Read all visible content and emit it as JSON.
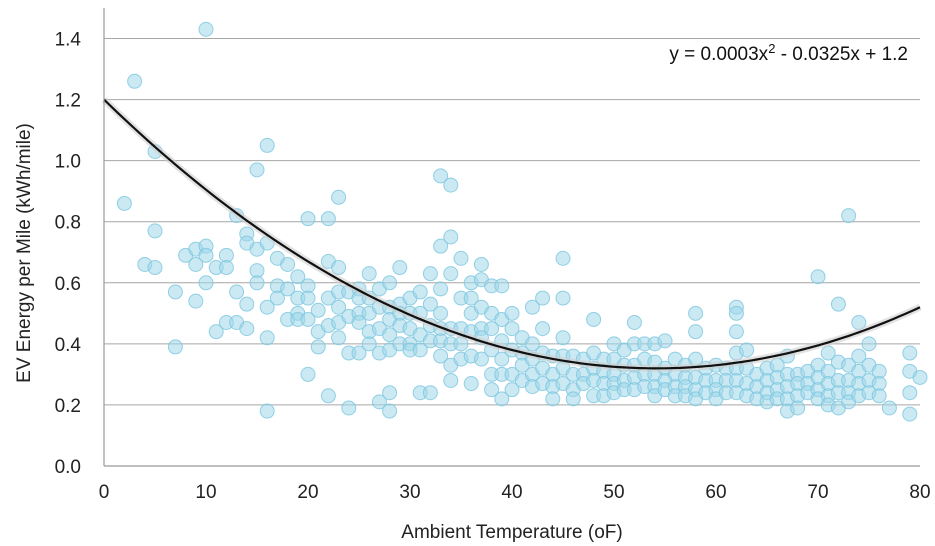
{
  "chart_data": {
    "type": "scatter",
    "title": "",
    "xlabel": "Ambient Temperature (oF)",
    "ylabel": "EV Energy per Mile (kWh/mile)",
    "xlim": [
      0,
      80
    ],
    "ylim": [
      0,
      1.5
    ],
    "x_ticks": [
      "0",
      "10",
      "20",
      "30",
      "40",
      "50",
      "60",
      "70",
      "80"
    ],
    "y_ticks": [
      "0.0",
      "0.2",
      "0.4",
      "0.6",
      "0.8",
      "1.0",
      "1.2",
      "1.4"
    ],
    "grid": "horizontal",
    "colors": {
      "points": "#9fd7e9",
      "points_stroke": "#7cc6df",
      "trend": "#111111"
    },
    "trendline": {
      "type": "polynomial",
      "coefficients": [
        0.0003,
        -0.0325,
        1.2
      ],
      "equation_prefix": "y = 0.0003x",
      "equation_sup": "2",
      "equation_suffix": " - 0.0325x + 1.2"
    },
    "points": [
      [
        2,
        0.86
      ],
      [
        3,
        1.26
      ],
      [
        4,
        0.66
      ],
      [
        5,
        1.03
      ],
      [
        5,
        0.77
      ],
      [
        5,
        0.65
      ],
      [
        7,
        0.57
      ],
      [
        7,
        0.39
      ],
      [
        8,
        0.69
      ],
      [
        9,
        0.71
      ],
      [
        9,
        0.66
      ],
      [
        9,
        0.54
      ],
      [
        10,
        1.43
      ],
      [
        10,
        0.72
      ],
      [
        10,
        0.69
      ],
      [
        10,
        0.6
      ],
      [
        11,
        0.65
      ],
      [
        11,
        0.44
      ],
      [
        12,
        0.69
      ],
      [
        12,
        0.65
      ],
      [
        12,
        0.47
      ],
      [
        13,
        0.82
      ],
      [
        13,
        0.57
      ],
      [
        13,
        0.47
      ],
      [
        14,
        0.76
      ],
      [
        14,
        0.73
      ],
      [
        14,
        0.53
      ],
      [
        14,
        0.45
      ],
      [
        15,
        0.97
      ],
      [
        15,
        0.71
      ],
      [
        15,
        0.64
      ],
      [
        15,
        0.6
      ],
      [
        16,
        1.05
      ],
      [
        16,
        0.73
      ],
      [
        16,
        0.52
      ],
      [
        16,
        0.42
      ],
      [
        16,
        0.18
      ],
      [
        17,
        0.68
      ],
      [
        17,
        0.59
      ],
      [
        17,
        0.55
      ],
      [
        18,
        0.66
      ],
      [
        18,
        0.58
      ],
      [
        18,
        0.48
      ],
      [
        19,
        0.62
      ],
      [
        19,
        0.55
      ],
      [
        19,
        0.5
      ],
      [
        19,
        0.48
      ],
      [
        20,
        0.81
      ],
      [
        20,
        0.59
      ],
      [
        20,
        0.55
      ],
      [
        20,
        0.48
      ],
      [
        20,
        0.3
      ],
      [
        21,
        0.51
      ],
      [
        21,
        0.44
      ],
      [
        21,
        0.39
      ],
      [
        22,
        0.81
      ],
      [
        22,
        0.67
      ],
      [
        22,
        0.55
      ],
      [
        22,
        0.46
      ],
      [
        22,
        0.23
      ],
      [
        23,
        0.88
      ],
      [
        23,
        0.65
      ],
      [
        23,
        0.57
      ],
      [
        23,
        0.52
      ],
      [
        23,
        0.47
      ],
      [
        23,
        0.42
      ],
      [
        24,
        0.57
      ],
      [
        24,
        0.49
      ],
      [
        24,
        0.37
      ],
      [
        24,
        0.19
      ],
      [
        25,
        0.58
      ],
      [
        25,
        0.55
      ],
      [
        25,
        0.5
      ],
      [
        25,
        0.47
      ],
      [
        25,
        0.37
      ],
      [
        26,
        0.63
      ],
      [
        26,
        0.55
      ],
      [
        26,
        0.5
      ],
      [
        26,
        0.44
      ],
      [
        26,
        0.4
      ],
      [
        27,
        0.58
      ],
      [
        27,
        0.52
      ],
      [
        27,
        0.45
      ],
      [
        27,
        0.37
      ],
      [
        27,
        0.21
      ],
      [
        28,
        0.6
      ],
      [
        28,
        0.52
      ],
      [
        28,
        0.48
      ],
      [
        28,
        0.43
      ],
      [
        28,
        0.38
      ],
      [
        28,
        0.24
      ],
      [
        28,
        0.18
      ],
      [
        29,
        0.65
      ],
      [
        29,
        0.53
      ],
      [
        29,
        0.5
      ],
      [
        29,
        0.46
      ],
      [
        29,
        0.4
      ],
      [
        30,
        0.55
      ],
      [
        30,
        0.5
      ],
      [
        30,
        0.45
      ],
      [
        30,
        0.4
      ],
      [
        30,
        0.38
      ],
      [
        31,
        0.57
      ],
      [
        31,
        0.5
      ],
      [
        31,
        0.43
      ],
      [
        31,
        0.38
      ],
      [
        31,
        0.24
      ],
      [
        32,
        0.63
      ],
      [
        32,
        0.53
      ],
      [
        32,
        0.46
      ],
      [
        32,
        0.41
      ],
      [
        32,
        0.24
      ],
      [
        33,
        0.95
      ],
      [
        33,
        0.72
      ],
      [
        33,
        0.58
      ],
      [
        33,
        0.5
      ],
      [
        33,
        0.45
      ],
      [
        33,
        0.41
      ],
      [
        33,
        0.36
      ],
      [
        34,
        0.92
      ],
      [
        34,
        0.75
      ],
      [
        34,
        0.63
      ],
      [
        34,
        0.45
      ],
      [
        34,
        0.4
      ],
      [
        34,
        0.33
      ],
      [
        34,
        0.28
      ],
      [
        35,
        0.68
      ],
      [
        35,
        0.55
      ],
      [
        35,
        0.45
      ],
      [
        35,
        0.4
      ],
      [
        35,
        0.35
      ],
      [
        36,
        0.6
      ],
      [
        36,
        0.55
      ],
      [
        36,
        0.5
      ],
      [
        36,
        0.44
      ],
      [
        36,
        0.36
      ],
      [
        36,
        0.27
      ],
      [
        37,
        0.66
      ],
      [
        37,
        0.61
      ],
      [
        37,
        0.52
      ],
      [
        37,
        0.45
      ],
      [
        37,
        0.42
      ],
      [
        37,
        0.35
      ],
      [
        38,
        0.59
      ],
      [
        38,
        0.5
      ],
      [
        38,
        0.45
      ],
      [
        38,
        0.38
      ],
      [
        38,
        0.3
      ],
      [
        38,
        0.25
      ],
      [
        39,
        0.59
      ],
      [
        39,
        0.48
      ],
      [
        39,
        0.41
      ],
      [
        39,
        0.35
      ],
      [
        39,
        0.3
      ],
      [
        39,
        0.22
      ],
      [
        40,
        0.5
      ],
      [
        40,
        0.45
      ],
      [
        40,
        0.38
      ],
      [
        40,
        0.3
      ],
      [
        40,
        0.25
      ],
      [
        41,
        0.42
      ],
      [
        41,
        0.37
      ],
      [
        41,
        0.33
      ],
      [
        41,
        0.28
      ],
      [
        42,
        0.52
      ],
      [
        42,
        0.4
      ],
      [
        42,
        0.35
      ],
      [
        42,
        0.3
      ],
      [
        42,
        0.26
      ],
      [
        43,
        0.55
      ],
      [
        43,
        0.45
      ],
      [
        43,
        0.37
      ],
      [
        43,
        0.32
      ],
      [
        43,
        0.27
      ],
      [
        44,
        0.36
      ],
      [
        44,
        0.3
      ],
      [
        44,
        0.26
      ],
      [
        44,
        0.22
      ],
      [
        45,
        0.68
      ],
      [
        45,
        0.55
      ],
      [
        45,
        0.42
      ],
      [
        45,
        0.36
      ],
      [
        45,
        0.32
      ],
      [
        45,
        0.27
      ],
      [
        46,
        0.36
      ],
      [
        46,
        0.3
      ],
      [
        46,
        0.25
      ],
      [
        46,
        0.22
      ],
      [
        47,
        0.35
      ],
      [
        47,
        0.3
      ],
      [
        47,
        0.27
      ],
      [
        48,
        0.48
      ],
      [
        48,
        0.37
      ],
      [
        48,
        0.32
      ],
      [
        48,
        0.28
      ],
      [
        48,
        0.23
      ],
      [
        49,
        0.35
      ],
      [
        49,
        0.31
      ],
      [
        49,
        0.27
      ],
      [
        49,
        0.23
      ],
      [
        50,
        0.4
      ],
      [
        50,
        0.35
      ],
      [
        50,
        0.3
      ],
      [
        50,
        0.27
      ],
      [
        50,
        0.24
      ],
      [
        51,
        0.38
      ],
      [
        51,
        0.33
      ],
      [
        51,
        0.28
      ],
      [
        51,
        0.25
      ],
      [
        52,
        0.47
      ],
      [
        52,
        0.4
      ],
      [
        52,
        0.33
      ],
      [
        52,
        0.29
      ],
      [
        52,
        0.25
      ],
      [
        53,
        0.4
      ],
      [
        53,
        0.35
      ],
      [
        53,
        0.3
      ],
      [
        53,
        0.26
      ],
      [
        54,
        0.4
      ],
      [
        54,
        0.34
      ],
      [
        54,
        0.3
      ],
      [
        54,
        0.26
      ],
      [
        54,
        0.23
      ],
      [
        55,
        0.41
      ],
      [
        55,
        0.32
      ],
      [
        55,
        0.28
      ],
      [
        55,
        0.25
      ],
      [
        56,
        0.35
      ],
      [
        56,
        0.3
      ],
      [
        56,
        0.26
      ],
      [
        56,
        0.23
      ],
      [
        57,
        0.33
      ],
      [
        57,
        0.29
      ],
      [
        57,
        0.26
      ],
      [
        57,
        0.23
      ],
      [
        58,
        0.5
      ],
      [
        58,
        0.44
      ],
      [
        58,
        0.35
      ],
      [
        58,
        0.29
      ],
      [
        58,
        0.25
      ],
      [
        58,
        0.22
      ],
      [
        59,
        0.32
      ],
      [
        59,
        0.28
      ],
      [
        59,
        0.24
      ],
      [
        60,
        0.33
      ],
      [
        60,
        0.28
      ],
      [
        60,
        0.25
      ],
      [
        60,
        0.22
      ],
      [
        61,
        0.32
      ],
      [
        61,
        0.28
      ],
      [
        61,
        0.24
      ],
      [
        62,
        0.52
      ],
      [
        62,
        0.5
      ],
      [
        62,
        0.44
      ],
      [
        62,
        0.37
      ],
      [
        62,
        0.32
      ],
      [
        62,
        0.28
      ],
      [
        62,
        0.24
      ],
      [
        63,
        0.38
      ],
      [
        63,
        0.32
      ],
      [
        63,
        0.27
      ],
      [
        63,
        0.23
      ],
      [
        64,
        0.3
      ],
      [
        64,
        0.26
      ],
      [
        64,
        0.22
      ],
      [
        65,
        0.32
      ],
      [
        65,
        0.28
      ],
      [
        65,
        0.24
      ],
      [
        65,
        0.21
      ],
      [
        66,
        0.33
      ],
      [
        66,
        0.29
      ],
      [
        66,
        0.25
      ],
      [
        66,
        0.22
      ],
      [
        67,
        0.36
      ],
      [
        67,
        0.3
      ],
      [
        67,
        0.26
      ],
      [
        67,
        0.22
      ],
      [
        67,
        0.18
      ],
      [
        68,
        0.3
      ],
      [
        68,
        0.27
      ],
      [
        68,
        0.23
      ],
      [
        68,
        0.19
      ],
      [
        69,
        0.31
      ],
      [
        69,
        0.27
      ],
      [
        69,
        0.24
      ],
      [
        70,
        0.62
      ],
      [
        70,
        0.33
      ],
      [
        70,
        0.29
      ],
      [
        70,
        0.25
      ],
      [
        70,
        0.22
      ],
      [
        71,
        0.37
      ],
      [
        71,
        0.31
      ],
      [
        71,
        0.27
      ],
      [
        71,
        0.23
      ],
      [
        71,
        0.2
      ],
      [
        72,
        0.53
      ],
      [
        72,
        0.34
      ],
      [
        72,
        0.28
      ],
      [
        72,
        0.24
      ],
      [
        72,
        0.19
      ],
      [
        73,
        0.82
      ],
      [
        73,
        0.33
      ],
      [
        73,
        0.28
      ],
      [
        73,
        0.24
      ],
      [
        73,
        0.21
      ],
      [
        74,
        0.47
      ],
      [
        74,
        0.36
      ],
      [
        74,
        0.31
      ],
      [
        74,
        0.27
      ],
      [
        74,
        0.23
      ],
      [
        75,
        0.4
      ],
      [
        75,
        0.33
      ],
      [
        75,
        0.28
      ],
      [
        75,
        0.24
      ],
      [
        76,
        0.31
      ],
      [
        76,
        0.27
      ],
      [
        76,
        0.23
      ],
      [
        77,
        0.19
      ],
      [
        79,
        0.37
      ],
      [
        79,
        0.31
      ],
      [
        79,
        0.24
      ],
      [
        79,
        0.17
      ],
      [
        80,
        0.29
      ]
    ]
  }
}
